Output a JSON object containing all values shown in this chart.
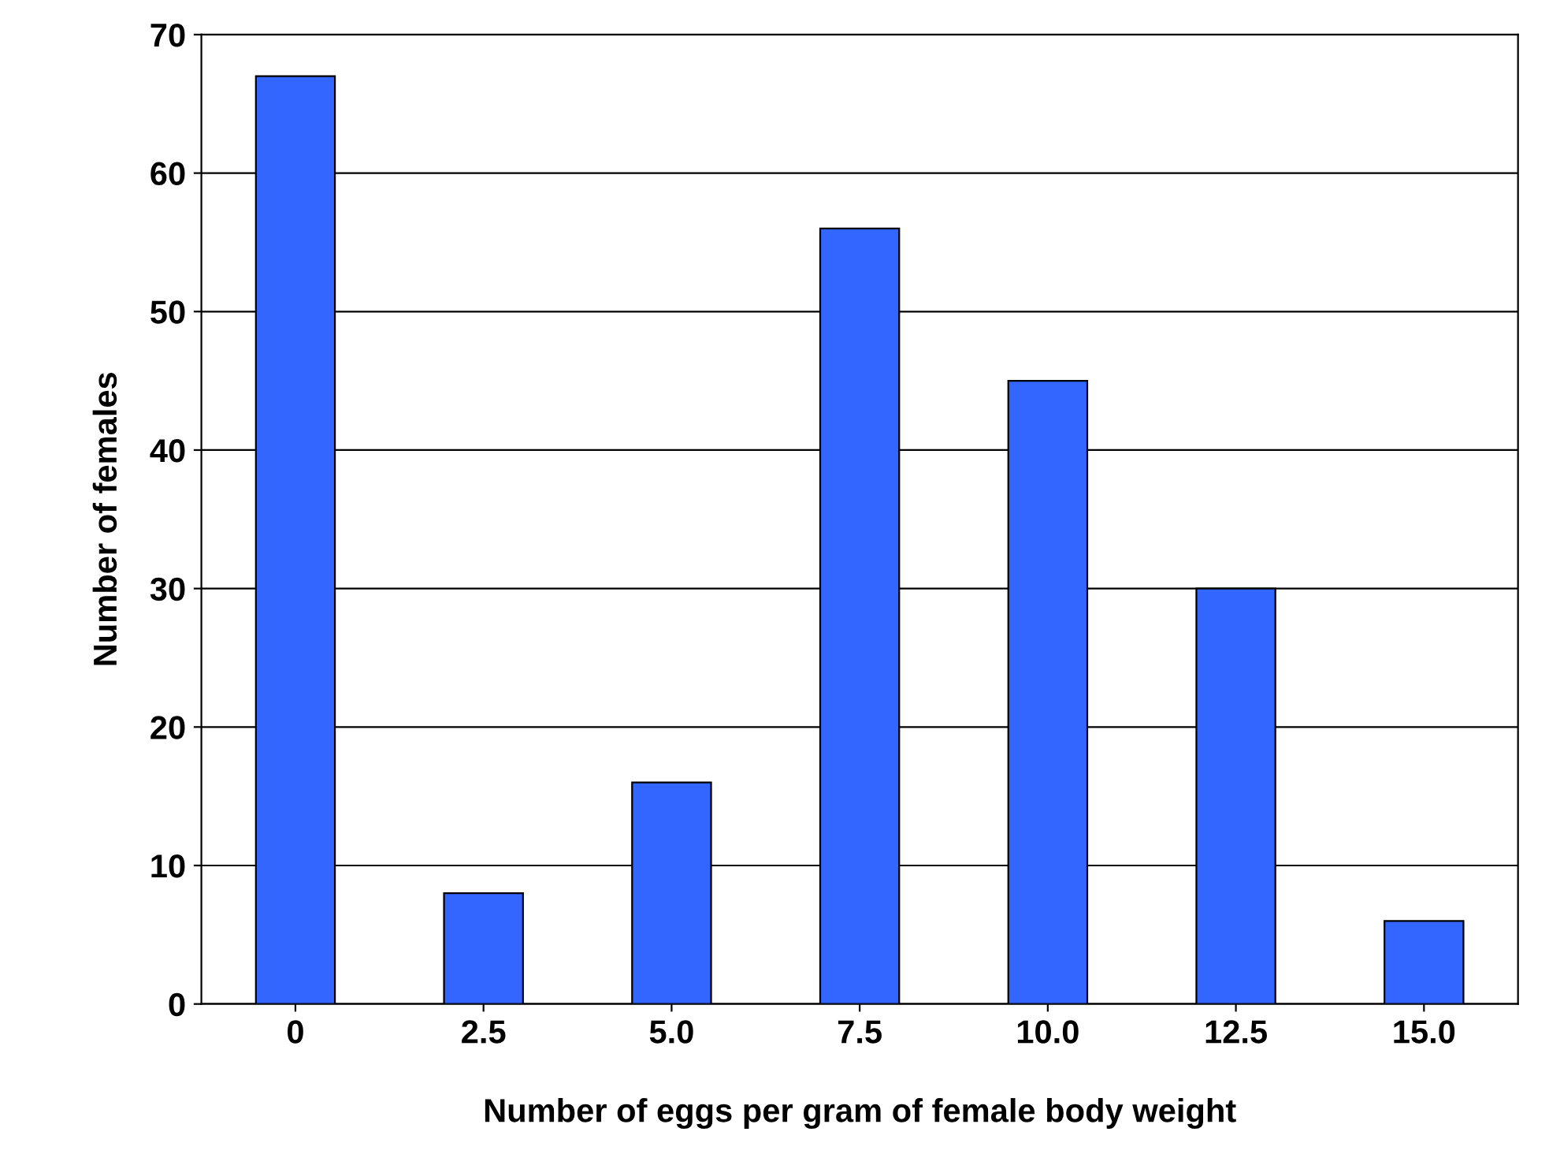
{
  "chart_data": {
    "type": "bar",
    "xlabel": "Number of eggs per gram of female body weight",
    "ylabel": "Number of females",
    "categories": [
      "0",
      "2.5",
      "5.0",
      "7.5",
      "10.0",
      "12.5",
      "15.0"
    ],
    "values": [
      67,
      8,
      16,
      56,
      45,
      30,
      6
    ],
    "color": "#3366ff",
    "ylim": [
      0,
      70
    ],
    "yticks": [
      0,
      10,
      20,
      30,
      40,
      50,
      60,
      70
    ],
    "grid": "y",
    "legend": false
  }
}
